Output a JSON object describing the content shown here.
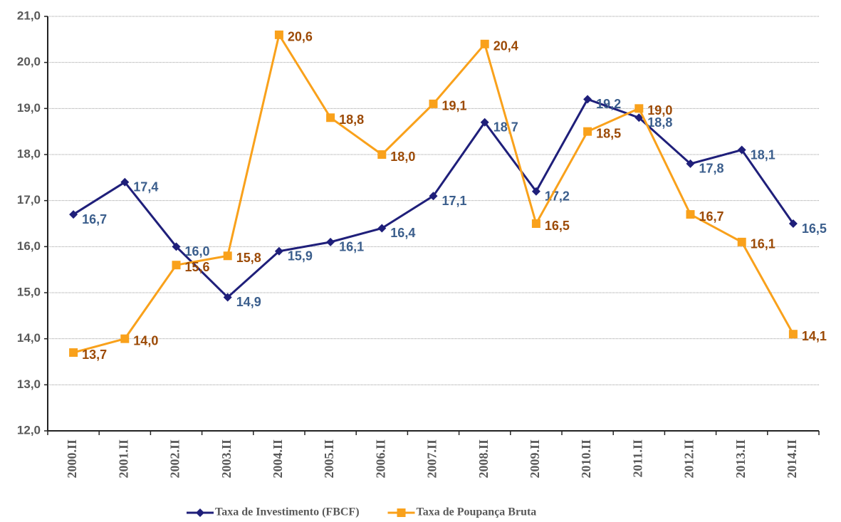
{
  "chart_data": {
    "type": "line",
    "categories": [
      "2000.II",
      "2001.II",
      "2002.II",
      "2003.II",
      "2004.II",
      "2005.II",
      "2006.II",
      "2007.II",
      "2008.II",
      "2009.II",
      "2010.II",
      "2011.II",
      "2012.II",
      "2013.II",
      "2014.II"
    ],
    "series": [
      {
        "name": "Taxa de Investimento (FBCF)",
        "color": "#1f1f7a",
        "label_color": "#3b5e8c",
        "marker": "diamond",
        "values": [
          16.7,
          17.4,
          16.0,
          14.9,
          15.9,
          16.1,
          16.4,
          17.1,
          18.7,
          17.2,
          19.2,
          18.8,
          17.8,
          18.1,
          16.5
        ],
        "value_labels": [
          "16,7",
          "17,4",
          "16,0",
          "14,9",
          "15,9",
          "16,1",
          "16,4",
          "17,1",
          "18,7",
          "17,2",
          "19,2",
          "18,8",
          "17,8",
          "18,1",
          "16,5"
        ]
      },
      {
        "name": "Taxa de Poupança Bruta",
        "color": "#f9a11b",
        "label_color": "#9c4a06",
        "marker": "square",
        "values": [
          13.7,
          14.0,
          15.6,
          15.8,
          20.6,
          18.8,
          18.0,
          19.1,
          20.4,
          16.5,
          18.5,
          19.0,
          16.7,
          16.1,
          14.1
        ],
        "value_labels": [
          "13,7",
          "14,0",
          "15,6",
          "15,8",
          "20,6",
          "18,8",
          "18,0",
          "19,1",
          "20,4",
          "16,5",
          "18,5",
          "19,0",
          "16,7",
          "16,1",
          "14,1"
        ]
      }
    ],
    "ylim": [
      12,
      21
    ],
    "yticks": [
      {
        "value": 12,
        "label": "12,0"
      },
      {
        "value": 13,
        "label": "13,0"
      },
      {
        "value": 14,
        "label": "14,0"
      },
      {
        "value": 15,
        "label": "15,0"
      },
      {
        "value": 16,
        "label": "16,0"
      },
      {
        "value": 17,
        "label": "17,0"
      },
      {
        "value": 18,
        "label": "18,0"
      },
      {
        "value": 19,
        "label": "19,0"
      },
      {
        "value": 20,
        "label": "20,0"
      },
      {
        "value": 21,
        "label": "21,0"
      }
    ],
    "grid": true,
    "legend_position": "bottom"
  }
}
